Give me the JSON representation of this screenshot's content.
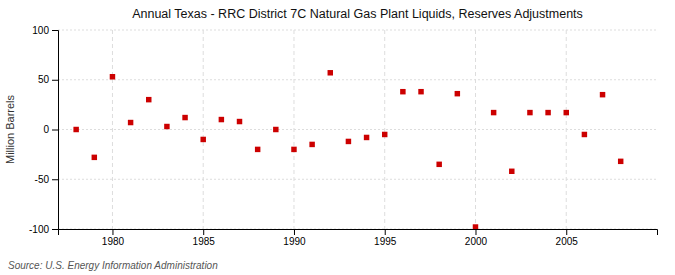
{
  "chart_data": {
    "type": "scatter",
    "title": "Annual Texas - RRC District 7C Natural Gas Plant Liquids, Reserves Adjustments",
    "ylabel": "Million Barrels",
    "source": "Source: U.S. Energy Information Administration",
    "x": [
      1978,
      1979,
      1980,
      1981,
      1982,
      1983,
      1984,
      1985,
      1986,
      1987,
      1988,
      1989,
      1990,
      1991,
      1992,
      1993,
      1994,
      1995,
      1996,
      1997,
      1998,
      1999,
      2000,
      2001,
      2002,
      2003,
      2004,
      2005,
      2006,
      2007,
      2008
    ],
    "values": [
      0,
      -28,
      53,
      7,
      30,
      3,
      12,
      -10,
      10,
      8,
      -20,
      0,
      -20,
      -15,
      57,
      -12,
      -8,
      -5,
      38,
      38,
      -35,
      36,
      -98,
      17,
      -42,
      17,
      17,
      17,
      -5,
      35,
      -32
    ],
    "color": "#cc0000",
    "marker": "square",
    "xlim": [
      1977,
      2010
    ],
    "xticks": [
      1980,
      1985,
      1990,
      1995,
      2000,
      2005
    ],
    "ylim": [
      -100,
      100
    ],
    "yticks": [
      -100,
      -50,
      0,
      50,
      100
    ],
    "grid": true
  }
}
